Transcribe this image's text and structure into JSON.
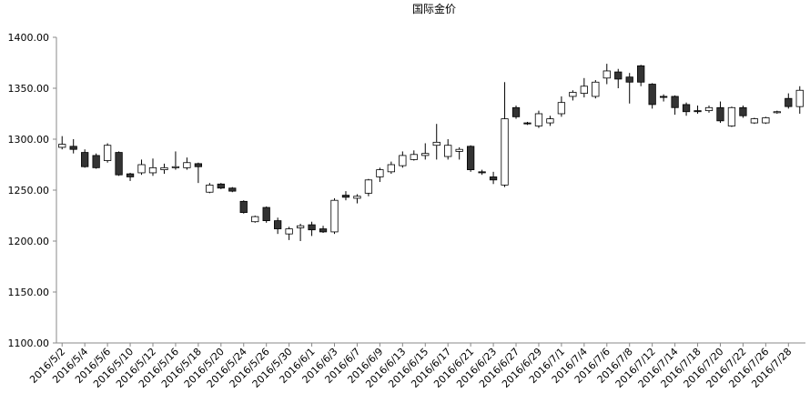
{
  "chart_data": {
    "type": "candlestick",
    "title": "国际金价",
    "categories": [
      "2016/5/2",
      null,
      "2016/5/4",
      null,
      "2016/5/6",
      null,
      "2016/5/10",
      null,
      "2016/5/12",
      null,
      "2016/5/16",
      null,
      "2016/5/18",
      null,
      "2016/5/20",
      null,
      "2016/5/24",
      null,
      "2016/5/26",
      null,
      "2016/5/30",
      null,
      "2016/6/1",
      null,
      "2016/6/3",
      null,
      "2016/6/7",
      null,
      "2016/6/9",
      null,
      "2016/6/13",
      null,
      "2016/6/15",
      null,
      "2016/6/17",
      null,
      "2016/6/21",
      null,
      "2016/6/23",
      null,
      "2016/6/27",
      null,
      "2016/6/29",
      null,
      "2016/7/1",
      null,
      "2016/7/4",
      null,
      "2016/7/6",
      null,
      "2016/7/8",
      null,
      "2016/7/12",
      null,
      "2016/7/14",
      null,
      "2016/7/18",
      null,
      "2016/7/20",
      null,
      "2016/7/22",
      null,
      "2016/7/26",
      null,
      "2016/7/28",
      null
    ],
    "open": [
      1292,
      1293,
      1287,
      1284,
      1279,
      1287,
      1266,
      1267,
      1267,
      1270,
      1272,
      1272,
      1276,
      1248,
      1256,
      1252,
      1239,
      1219,
      1233,
      1220,
      1207,
      1213,
      1216,
      1212,
      1209,
      1245,
      1242,
      1247,
      1263,
      1268,
      1274,
      1280,
      1284,
      1294,
      1283,
      1288,
      1293,
      1268,
      1263,
      1255,
      1331,
      1316,
      1313,
      1316,
      1325,
      1342,
      1345,
      1342,
      1360,
      1366,
      1361,
      1372,
      1354,
      1342,
      1342,
      1334,
      1328,
      1328,
      1331,
      1313,
      1331,
      1316,
      1316,
      1326,
      1340,
      1332
    ],
    "high": [
      1303,
      1300,
      1290,
      1286,
      1296,
      1288,
      1267,
      1280,
      1281,
      1276,
      1288,
      1282,
      1277,
      1257,
      1257,
      1253,
      1240,
      1225,
      1234,
      1223,
      1214,
      1217,
      1219,
      1215,
      1242,
      1249,
      1246,
      1261,
      1272,
      1278,
      1288,
      1289,
      1296,
      1315,
      1300,
      1292,
      1294,
      1270,
      1268,
      1356,
      1333,
      1317,
      1328,
      1323,
      1342,
      1348,
      1360,
      1358,
      1374,
      1369,
      1365,
      1373,
      1355,
      1344,
      1343,
      1336,
      1333,
      1333,
      1337,
      1332,
      1333,
      1321,
      1322,
      1328,
      1345,
      1352
    ],
    "low": [
      1290,
      1286,
      1272,
      1271,
      1277,
      1264,
      1259,
      1265,
      1264,
      1266,
      1270,
      1270,
      1257,
      1247,
      1251,
      1248,
      1227,
      1218,
      1218,
      1207,
      1201,
      1200,
      1205,
      1208,
      1207,
      1240,
      1237,
      1244,
      1258,
      1266,
      1272,
      1279,
      1280,
      1280,
      1280,
      1280,
      1268,
      1265,
      1256,
      1253,
      1320,
      1314,
      1311,
      1313,
      1322,
      1338,
      1341,
      1340,
      1354,
      1350,
      1335,
      1352,
      1330,
      1337,
      1324,
      1323,
      1325,
      1326,
      1316,
      1312,
      1321,
      1315,
      1315,
      1325,
      1330,
      1325
    ],
    "close": [
      1295,
      1290,
      1273,
      1272,
      1294,
      1265,
      1263,
      1275,
      1272,
      1272,
      1273,
      1277,
      1273,
      1255,
      1252,
      1249,
      1228,
      1224,
      1220,
      1212,
      1212,
      1215,
      1211,
      1209,
      1240,
      1243,
      1244,
      1260,
      1270,
      1275,
      1284,
      1285,
      1286,
      1297,
      1294,
      1290,
      1270,
      1267,
      1260,
      1320,
      1322,
      1315,
      1325,
      1320,
      1336,
      1346,
      1352,
      1356,
      1367,
      1359,
      1356,
      1356,
      1334,
      1341,
      1331,
      1327,
      1327,
      1331,
      1318,
      1331,
      1323,
      1320,
      1321,
      1327,
      1332,
      1348
    ],
    "up_color": "#ffffff",
    "down_color": "#333333",
    "edge_color": "#000000",
    "ylim": [
      1100,
      1400
    ],
    "yticks": [
      {
        "value": 1100,
        "label": "1100.00"
      },
      {
        "value": 1150,
        "label": "1150.00"
      },
      {
        "value": 1200,
        "label": "1200.00"
      },
      {
        "value": 1250,
        "label": "1250.00"
      },
      {
        "value": 1300,
        "label": "1300.00"
      },
      {
        "value": 1350,
        "label": "1350.00"
      },
      {
        "value": 1400,
        "label": "1400.00"
      }
    ],
    "grid": false
  }
}
